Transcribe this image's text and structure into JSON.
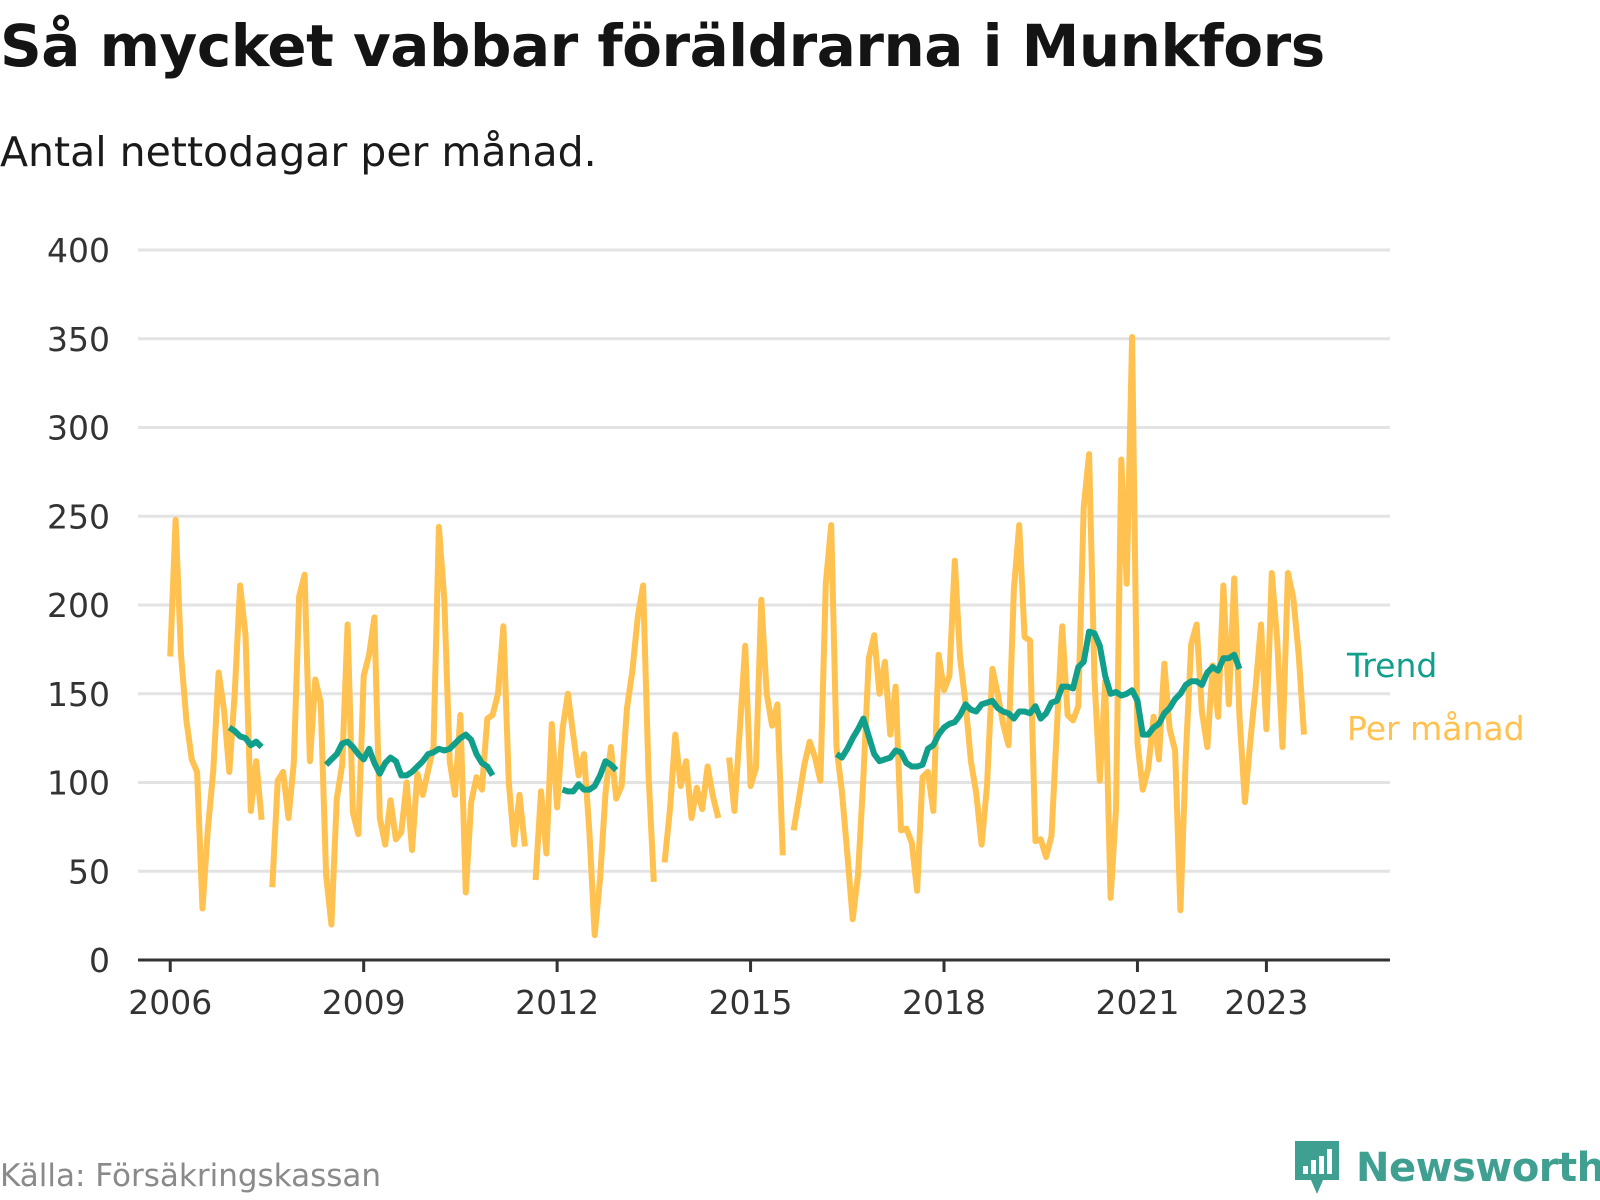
{
  "title": "Så mycket vabbar föräldrarna i Munkfors",
  "subtitle": "Antal nettodagar per månad.",
  "source": "Källa: Försäkringskassan",
  "brand": {
    "name": "Newsworthy",
    "icon": "bar-chart-badge-icon"
  },
  "colors": {
    "monthly": "#ffc14f",
    "trend": "#119e8a",
    "grid": "#e3e3e3",
    "axis": "#333333",
    "brand": "#3f9f91"
  },
  "chart_data": {
    "type": "line",
    "y_ticks": [
      0,
      50,
      100,
      150,
      200,
      250,
      300,
      350,
      400
    ],
    "ylim": [
      0,
      400
    ],
    "xlim": [
      "2005-07",
      "2024-12"
    ],
    "x_ticks": [
      {
        "x": "2006-01",
        "label": "2006"
      },
      {
        "x": "2009-01",
        "label": "2009"
      },
      {
        "x": "2012-01",
        "label": "2012"
      },
      {
        "x": "2015-01",
        "label": "2015"
      },
      {
        "x": "2018-01",
        "label": "2018"
      },
      {
        "x": "2021-01",
        "label": "2021"
      },
      {
        "x": "2023-01",
        "label": "2023"
      }
    ],
    "grid": true,
    "legend": "right, at line ends",
    "series": [
      {
        "name": "Per månad",
        "segments": [
          {
            "start": "2006-01",
            "values": [
              171,
              248,
              172,
              135,
              113,
              106,
              29,
              74,
              106,
              162,
              141,
              106,
              150,
              211,
              183,
              84,
              112,
              79
            ]
          },
          {
            "start": "2007-08",
            "values": [
              41,
              101,
              106,
              80,
              111,
              205,
              217,
              112,
              158,
              145,
              48,
              20,
              91,
              110,
              189,
              83,
              71,
              160,
              172,
              193,
              80,
              65,
              90,
              68,
              72,
              100,
              62,
              105,
              93,
              107,
              120,
              244,
              203,
              112,
              93,
              138,
              38,
              89,
              103,
              96,
              136,
              138,
              150,
              188,
              100,
              65,
              93,
              64
            ]
          },
          {
            "start": "2011-09",
            "values": [
              45,
              95,
              60,
              133,
              86,
              130,
              150,
              127,
              104,
              116,
              72,
              14,
              46,
              94,
              120,
              91,
              98,
              142,
              163,
              193,
              211,
              105,
              44
            ]
          },
          {
            "start": "2013-09",
            "values": [
              55,
              85,
              127,
              98,
              112,
              80,
              97,
              85,
              109,
              92,
              80
            ]
          },
          {
            "start": "2014-09",
            "values": [
              114,
              84,
              130,
              177,
              98,
              108,
              203,
              150,
              132,
              144,
              59
            ]
          },
          {
            "start": "2015-09",
            "values": [
              73,
              91,
              110,
              123,
              114,
              101,
              212,
              245,
              120,
              95,
              60,
              23,
              48,
              103,
              170,
              183,
              150,
              168,
              127,
              154,
              73,
              74,
              66,
              39,
              103,
              106,
              84,
              172,
              152,
              160,
              225,
              170,
              145,
              112,
              94,
              65,
              98,
              164,
              150,
              133,
              121,
              209,
              245,
              182,
              180,
              67,
              68,
              58,
              70,
              130,
              188,
              138,
              135,
              143,
              255,
              285,
              158,
              101,
              157,
              35,
              85,
              282,
              212,
              351,
              122,
              96,
              108,
              137,
              113,
              167,
              130,
              118,
              28,
              115,
              178,
              189,
              140,
              120,
              166,
              137,
              211,
              144,
              215,
              137,
              89,
              123,
              154,
              189,
              130,
              218,
              180,
              120,
              218,
              204,
              172,
              127
            ]
          }
        ]
      },
      {
        "name": "Trend",
        "segments": [
          {
            "start": "2006-12",
            "values": [
              131,
              129,
              126,
              125,
              121,
              123,
              120
            ]
          },
          {
            "start": "2008-06",
            "values": [
              110,
              113,
              116,
              122,
              123,
              120,
              116,
              113,
              119,
              111,
              105,
              111,
              114,
              112,
              104,
              104,
              106,
              109,
              112,
              116,
              117,
              119,
              118,
              119,
              122,
              125,
              127,
              124,
              116,
              111,
              109,
              104
            ]
          },
          {
            "start": "2012-02",
            "values": [
              96,
              95,
              95,
              99,
              96,
              96,
              98,
              104,
              112,
              110,
              107
            ]
          },
          {
            "start": "2016-05",
            "values": [
              116,
              114,
              119,
              125,
              130,
              136,
              126,
              116,
              112,
              113,
              114,
              118,
              117,
              111,
              109,
              109,
              110,
              119,
              121,
              127,
              131,
              133,
              134,
              138,
              144,
              141,
              140,
              144,
              145,
              146,
              142,
              140,
              139,
              136,
              140,
              140,
              139,
              143,
              136,
              139,
              145,
              146,
              154,
              154,
              153,
              165,
              168,
              185,
              184,
              177,
              160,
              150,
              151,
              149,
              150,
              152,
              146,
              127,
              127,
              131,
              133,
              139,
              142,
              147,
              150,
              155,
              157,
              157,
              155,
              162,
              165,
              163,
              170,
              170,
              172,
              164
            ]
          }
        ]
      }
    ]
  }
}
